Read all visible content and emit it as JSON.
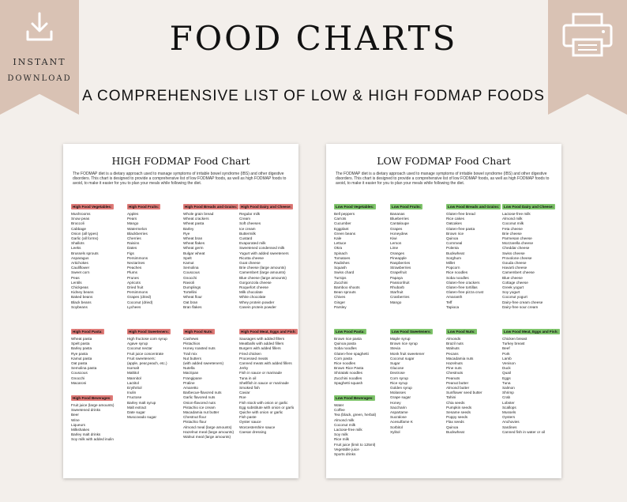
{
  "banner": {
    "title": "FOOD CHARTS",
    "subtitle": "A COMPREHENSIVE LIST OF LOW & HIGH FODMAP FOODS",
    "instant": "INSTANT",
    "download": "DOWNLOAD",
    "accent_color": "#d9c2b4"
  },
  "intro_text": "The FODMAP diet is a dietary approach used to manage symptoms of irritable bowel syndrome (IBS) and other digestive disorders. This chart is designed to provide a comprehensive list of low FODMAP foods, as well as high FODMAP foods to avoid, to make it easier for you to plan your meals while following the diet.",
  "high": {
    "title": "HIGH FODMAP Food Chart",
    "header_color": "#e07b78",
    "row1": [
      {
        "header": "High Food Vegetables:",
        "items": [
          "Mushrooms",
          "Snow peas",
          "Broccoli",
          "Cabbage",
          "Onion (all types)",
          "Garlic (all forms)",
          "Shallots",
          "Leeks",
          "Brussels sprouts",
          "Asparagus",
          "Artichokes",
          "Cauliflower",
          "Sweet corn",
          "Peas",
          "Lentils",
          "Chickpeas",
          "Kidney beans",
          "Baked beans",
          "Black beans",
          "Soybeans"
        ]
      },
      {
        "header": "High Food Fruits:",
        "items": [
          "Apples",
          "Pears",
          "Mango",
          "Watermelon",
          "Blackberries",
          "Cherries",
          "Raisins",
          "Dates",
          "Figs",
          "Persimmons",
          "Nectarines",
          "Peaches",
          "Plums",
          "Prunes",
          "Apricots",
          "Dried fruit",
          "Persimmons",
          "Grapes (dried)",
          "Coconut (dried)",
          "Lychees"
        ]
      },
      {
        "header": "High Food Breads and Grains:",
        "items": [
          "Whole grain bread",
          "Wheat crackers",
          "Wheat pasta",
          "Barley",
          "Rye",
          "Wheat bran",
          "Wheat flakes",
          "Wheat germ",
          "Bulgar wheat",
          "Spelt",
          "Kamut",
          "Semolina",
          "Couscous",
          "Gnocchi",
          "Ravioli",
          "Dumplings",
          "Tortellini",
          "Wheat flour",
          "Oat bran",
          "Bran flakes"
        ]
      },
      {
        "header": "High Food Dairy and Cheese:",
        "items": [
          "Regular milk",
          "Cream",
          "Soft cheeses",
          "Ice cream",
          "Buttermilk",
          "Custard",
          "Evaporated milk",
          "Sweetened condensed milk",
          "Yogurt with added sweeteners",
          "Ricotta cheese",
          "Goat cheese",
          "Brie cheese (large amounts)",
          "Camembert (large amounts)",
          "Blue cheese (large amounts)",
          "Gorgonzola cheese",
          "Roquefort cheese",
          "Milk chocolate",
          "White chocolate",
          "Whey protein powder",
          "Casein protein powder"
        ]
      }
    ],
    "row2": [
      {
        "header": "High Food Pasta:",
        "items": [
          "Wheat pasta",
          "Spelt pasta",
          "Barley pasta",
          "Rye pasta",
          "Kamut pasta",
          "Oat pasta",
          "Semolina pasta",
          "Couscous",
          "Gnocchi",
          "Macaroni"
        ],
        "header2": "High Food Beverages:",
        "items2": [
          "Fruit juice (large amounts)",
          "Sweetened drinks",
          "Beer",
          "Wine",
          "Liqueurs",
          "Milkshakes",
          "Barley malt drinks",
          "Soy milk with added inulin"
        ]
      },
      {
        "header": "High Food Sweeteners:",
        "items": [
          "High fructose corn syrup",
          "Agave syrup",
          "Coconut nectar",
          "Fruit juice concentrate",
          "Fruit sweeteners:",
          "(apple, pear,peach, etc.)",
          "Isomalt",
          "Maltitol",
          "Mannitol",
          "Lactitol",
          "Erythritol",
          "Inulin",
          "Fructose",
          "Barley malt syrup",
          "Malt extract",
          "Date sugar",
          "Muscovado sugar"
        ]
      },
      {
        "header": "High Food Nuts:",
        "items": [
          "Cashews",
          "Pistachios",
          "Honey roasted nuts",
          "Trail mix",
          "Nut butters",
          "(with added sweeteners)",
          "Nutella",
          "Marzipan",
          "Frangipane",
          "Praline",
          "Amaretto",
          "Barbecue-flavored nuts",
          "Garlic flavored nuts",
          "Onion-flavored nuts",
          "Pistachio ice cream",
          "Macadamia nut butter",
          "Chestnut flour",
          "Pistachio flour",
          "Almond meal (large amounts)",
          "Hazelnut meal (large amounts)",
          "Walnut meal (large amounts)"
        ]
      },
      {
        "header": "High Food Meat, Eggs and Fish:",
        "items": [
          "Sausages with added fillers",
          "Meatballs with added fillers",
          "Burgers with added fillers",
          "Fried chicken",
          "Processed meats",
          "Canned meats with added fillers",
          "Jerky",
          "Fish in sauce or marinade",
          "Tuna in oil",
          "Shellfish in sauce or marinade",
          "Smoked fish",
          "Caviar",
          "Roe",
          "Fish stock with onion or garlic",
          "Egg substitute with onion or garlic",
          "Quiche with onion or garlic",
          "Fish paste",
          "Oyster sauce",
          "Worcestershire sauce",
          "Caesar dressing"
        ]
      }
    ]
  },
  "low": {
    "title": "LOW  FODMAP Food Chart",
    "header_color": "#7fc56b",
    "row1": [
      {
        "header": "Low Food Vegetables:",
        "items": [
          "Bell peppers",
          "Carrots",
          "Cucumber",
          "Eggplant",
          "Green beans",
          "Kale",
          "Lettuce",
          "Okra",
          "Spinach",
          "Tomatoes",
          "Radishes",
          "Squash",
          "Swiss chard",
          "Turnips",
          "Zucchini",
          "Bamboo shoots",
          "Bean sprouts",
          "Chives",
          "Ginger",
          "Parsley"
        ]
      },
      {
        "header": "Low Food Fruits:",
        "items": [
          "Bananas",
          "Blueberries",
          "Cantaloupe",
          "Grapes",
          "Honeydew",
          "Kiwi",
          "Lemon",
          "Lime",
          "Oranges",
          "Pineapple",
          "Raspberries",
          "Strawberries",
          "Grapefruit",
          "Papaya",
          "Passionfruit",
          "Rhubarb",
          "Starfruit",
          "Cranberries",
          "Mango"
        ]
      },
      {
        "header": "Low Food Breads and Grains:",
        "items": [
          "Gluten-free bread",
          "Rice cakes",
          "Oatcakes",
          "Gluten-free pasta",
          "Brown rice",
          "Quinoa",
          "Cornmeal",
          "Polenta",
          "Buckwheat",
          "Sorghum",
          "Millet",
          "Popcorn",
          "Rice noodles",
          "Soba noodles",
          "Gluten-free crackers",
          "Gluten-free tortillas",
          "Gluten-free pizza crust",
          "Amaranth",
          "Teff",
          "Tapioca"
        ]
      },
      {
        "header": "Low Food Dairy and Cheese:",
        "items": [
          "Lactose-free milk",
          "Almond milk",
          "Coconut milk",
          "Feta cheese",
          "Brie cheese",
          "Parmesan cheese",
          "Mozzarella cheese",
          "Cheddar cheese",
          "Swiss cheese",
          "Provolone cheese",
          "Gouda cheese",
          "Havarti cheese",
          "Camembert cheese",
          "Blue cheese",
          "Cottage cheese",
          "Greek yogurt",
          "Soy yogurt",
          "Coconut yogurt",
          "Dairy-free cream cheese",
          "Dairy-free sour cream"
        ]
      }
    ],
    "row2": [
      {
        "header": "Low Food Pasta:",
        "items": [
          "Brown rice pasta",
          "Quinoa pasta",
          "Soba noodles",
          "Gluten-free spaghetti",
          "Corn pasta",
          "Rice noodles",
          "Brown Rice Pasta",
          "Shirataki noodles",
          "Zucchini noodles",
          "Spaghetti squash"
        ]
      },
      {
        "header": "Low Food Sweeteners:",
        "items": [
          "Maple syrup",
          "Brown rice syrup",
          "Stevia",
          "Monk fruit sweetener",
          "Coconut sugar",
          "Sugar",
          "Glucose",
          "Dextrose",
          "Corn syrup",
          "Rice syrup",
          "Golden syrup",
          "Molasses",
          "Grape sugar",
          "Honey",
          "Saccharin",
          "Aspartame",
          "Sucralose",
          "Acesulfame K",
          "Sorbitol",
          "Xylitol"
        ]
      },
      {
        "header": "Low Food Nuts:",
        "items": [
          "Almonds",
          "Brazil nuts",
          "Walnuts",
          "Pecans",
          "Macadamia nuts",
          "Hazelnuts",
          "Pine nuts",
          "Chestnuts",
          "Peanuts",
          "Peanut butter",
          "Almond butter",
          "Sunflower seed butter",
          "Tahini",
          "Chia seeds",
          "Pumpkin seeds",
          "Sesame seeds",
          "Poppy seeds",
          "Flax seeds",
          "Quinoa",
          "Buckwheat"
        ]
      },
      {
        "header": "Low Food Meat, Eggs and Fish:",
        "items": [
          "Chicken breast",
          "Turkey breast",
          "Beef",
          "Pork",
          "Lamb",
          "Venison",
          "Duck",
          "Quail",
          "Eggs",
          "Tuna",
          "Salmon",
          "Shrimp",
          "Crab",
          "Lobster",
          "Scallops",
          "Mussels",
          "Oysters",
          "Anchovies",
          "Sardines",
          "Canned fish in water or oil"
        ]
      }
    ],
    "beverages": {
      "header": "Low Food Beverages:",
      "items": [
        "Water",
        "Coffee",
        "Tea (black, green, herbal)",
        "Almond milk",
        "Coconut milk",
        "Lactose-free milk",
        "Soy milk",
        "Rice milk",
        "Fruit juice (limit to 125ml)",
        "Vegetable juice",
        "Sports drinks"
      ]
    }
  }
}
